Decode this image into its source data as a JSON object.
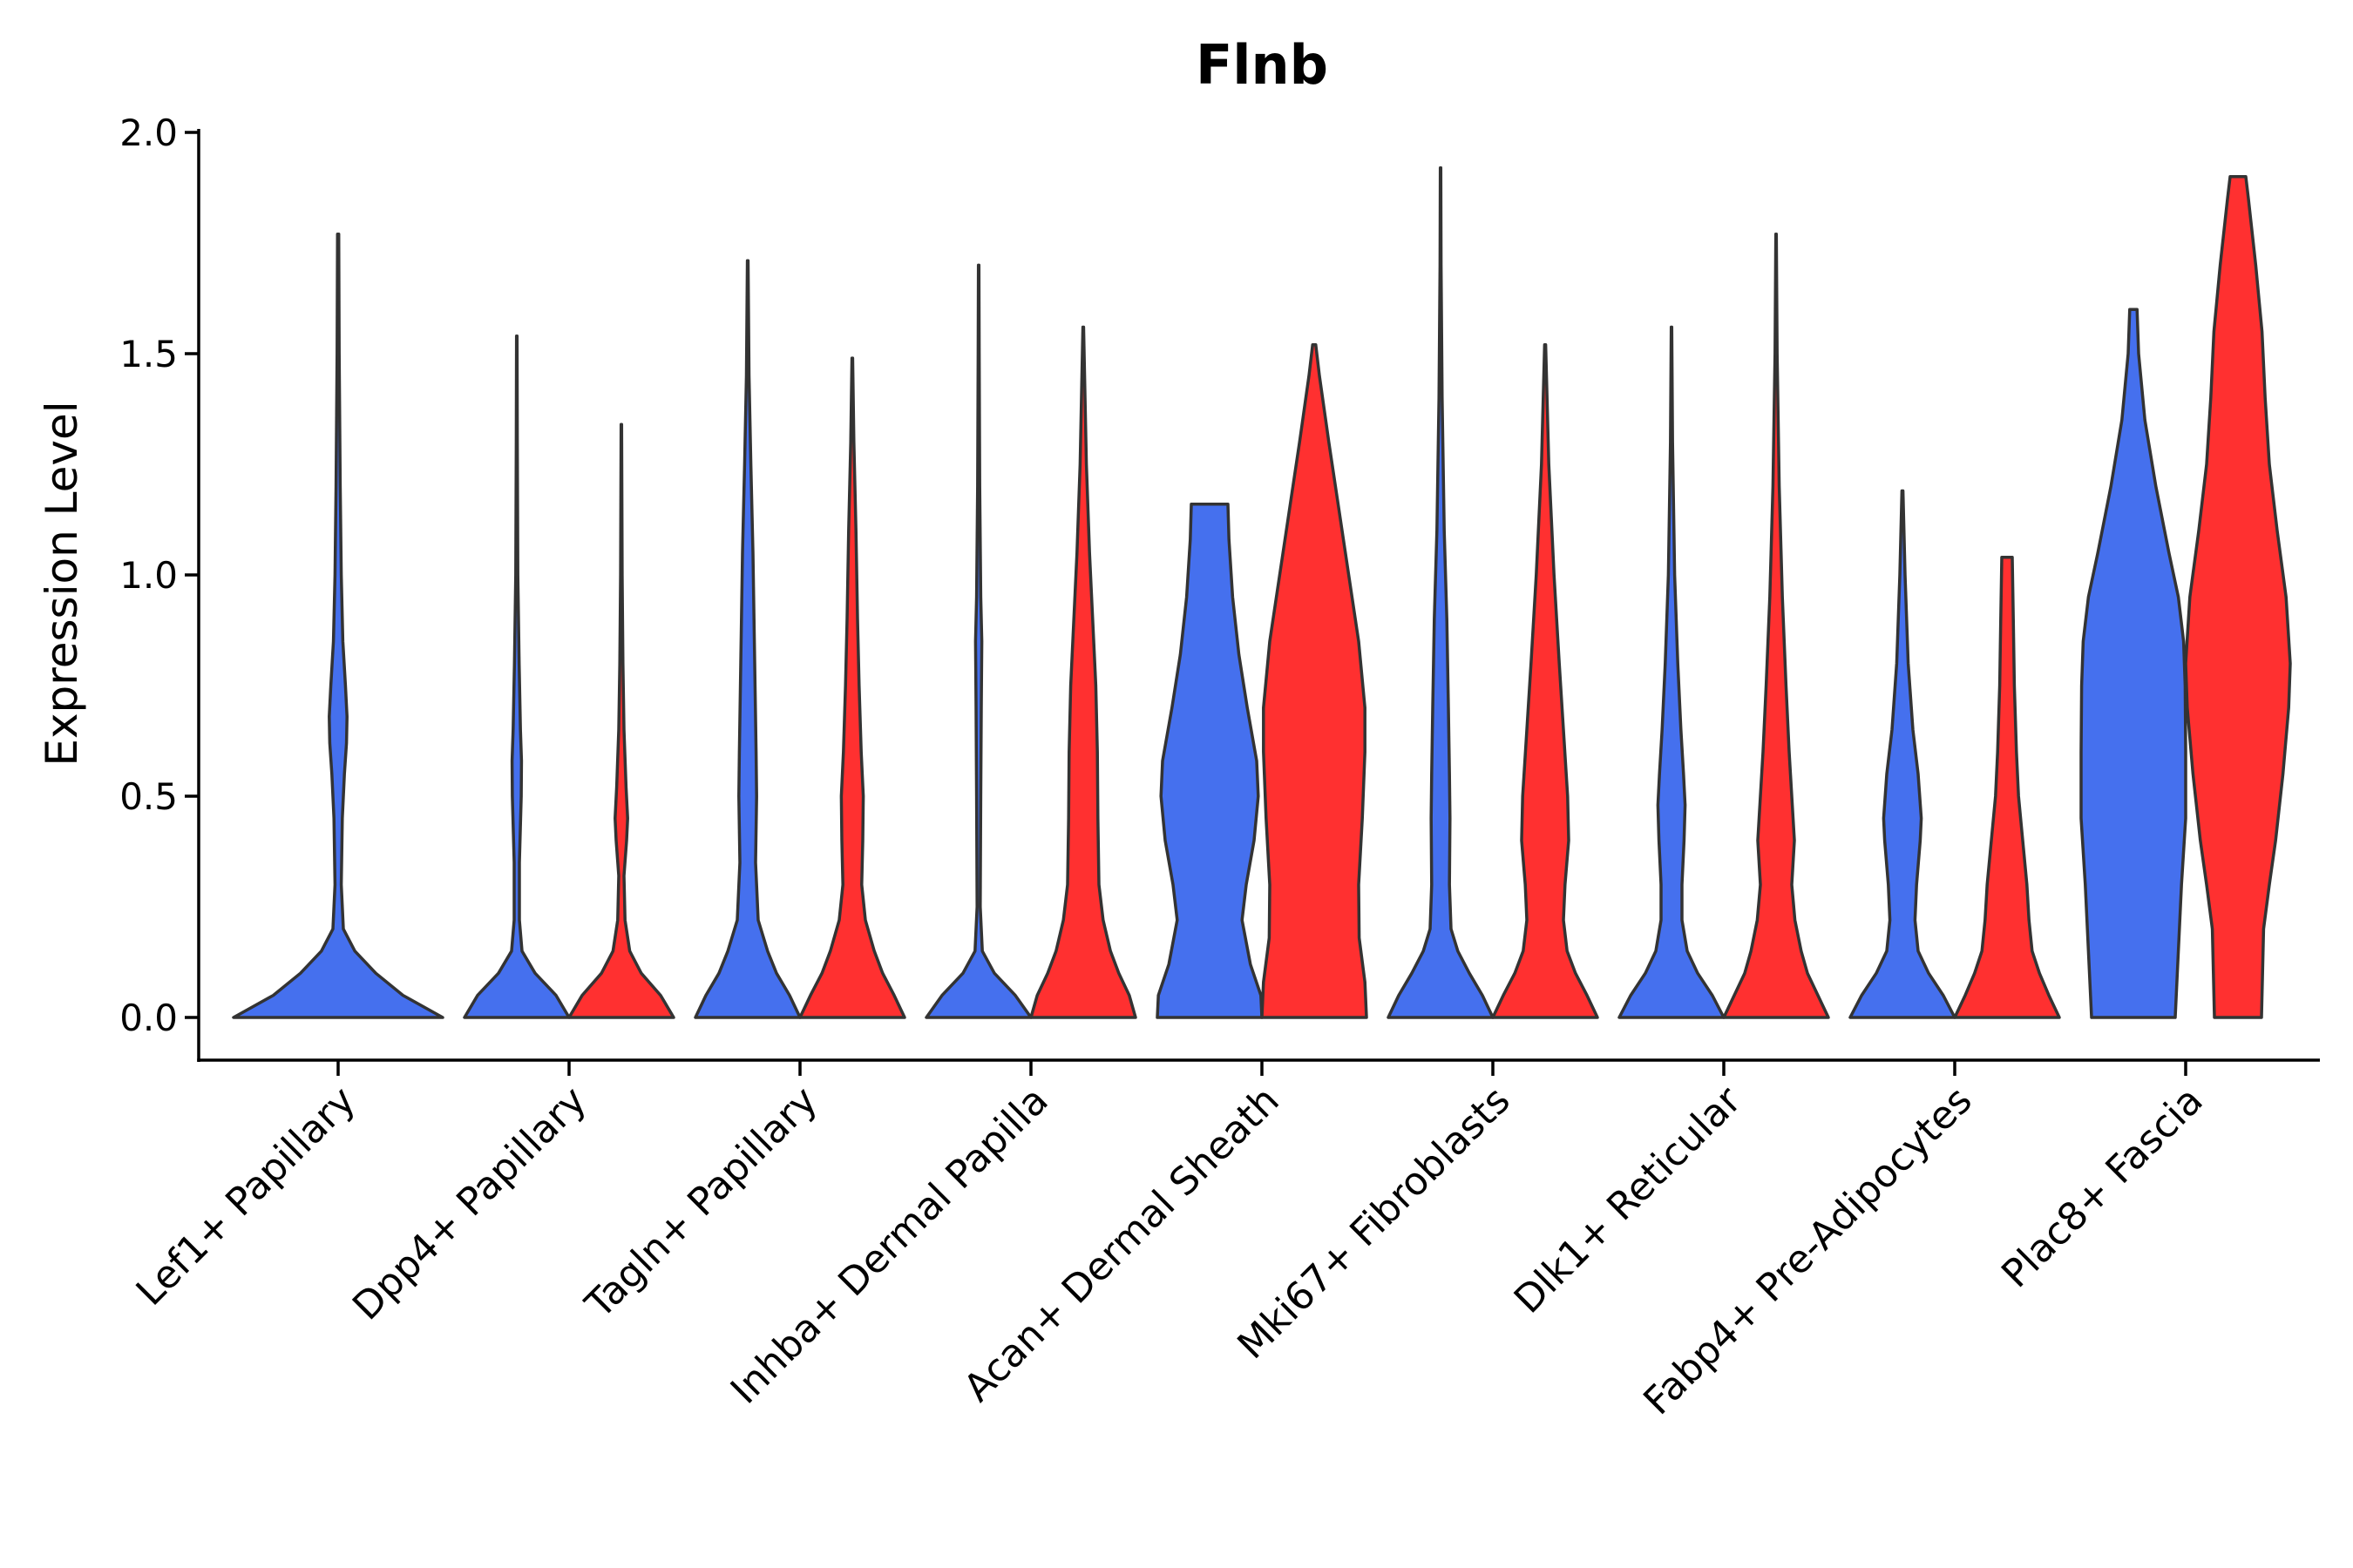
{
  "chart_data": {
    "type": "violin",
    "title": "Flnb",
    "xlabel": "",
    "ylabel": "Expression Level",
    "ylim": [
      -0.1,
      2.0
    ],
    "yticks": [
      0.0,
      0.5,
      1.0,
      1.5,
      2.0
    ],
    "ytick_labels": [
      "0.0",
      "0.5",
      "1.0",
      "1.5",
      "2.0"
    ],
    "series_colors": {
      "group1": "#4570EE",
      "group2": "#FF3030"
    },
    "categories": [
      "Lef1+ Papillary",
      "Dpp4+ Papillary",
      "Tagln+ Papillary",
      "Inhba+ Dermal Papilla",
      "Acan+ Dermal Sheath",
      "Mki67+ Fibroblasts",
      "Dlk1+ Reticular",
      "Fabp4+ Pre-Adipocytes",
      "Plac8+ Fascia"
    ],
    "violins": [
      {
        "category": "Lef1+ Papillary",
        "group": "group1",
        "max": 1.77,
        "profile": [
          [
            0,
            1
          ],
          [
            0.05,
            0.62
          ],
          [
            0.1,
            0.36
          ],
          [
            0.15,
            0.16
          ],
          [
            0.2,
            0.05
          ],
          [
            0.3,
            0.03
          ],
          [
            0.45,
            0.04
          ],
          [
            0.55,
            0.06
          ],
          [
            0.62,
            0.08
          ],
          [
            0.68,
            0.085
          ],
          [
            0.75,
            0.07
          ],
          [
            0.85,
            0.045
          ],
          [
            1.0,
            0.03
          ],
          [
            1.2,
            0.02
          ],
          [
            1.5,
            0.01
          ],
          [
            1.77,
            0.006
          ]
        ]
      },
      {
        "category": "Dpp4+ Papillary",
        "group": "group1",
        "max": 1.54,
        "profile": [
          [
            0,
            1
          ],
          [
            0.05,
            0.75
          ],
          [
            0.1,
            0.35
          ],
          [
            0.15,
            0.1
          ],
          [
            0.22,
            0.05
          ],
          [
            0.35,
            0.05
          ],
          [
            0.5,
            0.085
          ],
          [
            0.58,
            0.09
          ],
          [
            0.65,
            0.07
          ],
          [
            0.8,
            0.045
          ],
          [
            1.0,
            0.02
          ],
          [
            1.3,
            0.01
          ],
          [
            1.54,
            0.005
          ]
        ]
      },
      {
        "category": "Dpp4+ Papillary",
        "group": "group2",
        "max": 1.34,
        "profile": [
          [
            0,
            1
          ],
          [
            0.05,
            0.75
          ],
          [
            0.1,
            0.38
          ],
          [
            0.15,
            0.16
          ],
          [
            0.22,
            0.07
          ],
          [
            0.32,
            0.05
          ],
          [
            0.4,
            0.1
          ],
          [
            0.45,
            0.12
          ],
          [
            0.52,
            0.09
          ],
          [
            0.65,
            0.05
          ],
          [
            0.8,
            0.03
          ],
          [
            1.0,
            0.015
          ],
          [
            1.34,
            0.005
          ]
        ]
      },
      {
        "category": "Tagln+ Papillary",
        "group": "group1",
        "max": 1.71,
        "profile": [
          [
            0,
            1
          ],
          [
            0.05,
            0.8
          ],
          [
            0.1,
            0.55
          ],
          [
            0.15,
            0.38
          ],
          [
            0.22,
            0.2
          ],
          [
            0.35,
            0.15
          ],
          [
            0.5,
            0.17
          ],
          [
            0.6,
            0.16
          ],
          [
            0.75,
            0.14
          ],
          [
            0.9,
            0.12
          ],
          [
            1.05,
            0.1
          ],
          [
            1.25,
            0.06
          ],
          [
            1.45,
            0.025
          ],
          [
            1.71,
            0.006
          ]
        ]
      },
      {
        "category": "Tagln+ Papillary",
        "group": "group2",
        "max": 1.49,
        "profile": [
          [
            0,
            1
          ],
          [
            0.05,
            0.8
          ],
          [
            0.1,
            0.58
          ],
          [
            0.15,
            0.42
          ],
          [
            0.22,
            0.25
          ],
          [
            0.3,
            0.18
          ],
          [
            0.4,
            0.2
          ],
          [
            0.5,
            0.21
          ],
          [
            0.6,
            0.17
          ],
          [
            0.75,
            0.13
          ],
          [
            0.9,
            0.1
          ],
          [
            1.1,
            0.07
          ],
          [
            1.3,
            0.03
          ],
          [
            1.49,
            0.006
          ]
        ]
      },
      {
        "category": "Inhba+ Dermal Papilla",
        "group": "group1",
        "max": 1.7,
        "profile": [
          [
            0,
            1
          ],
          [
            0.05,
            0.7
          ],
          [
            0.1,
            0.3
          ],
          [
            0.15,
            0.07
          ],
          [
            0.25,
            0.03
          ],
          [
            0.5,
            0.04
          ],
          [
            0.7,
            0.05
          ],
          [
            0.85,
            0.06
          ],
          [
            0.95,
            0.04
          ],
          [
            1.2,
            0.02
          ],
          [
            1.5,
            0.01
          ],
          [
            1.7,
            0.005
          ]
        ]
      },
      {
        "category": "Inhba+ Dermal Papilla",
        "group": "group2",
        "max": 1.56,
        "profile": [
          [
            0,
            1
          ],
          [
            0.05,
            0.88
          ],
          [
            0.1,
            0.68
          ],
          [
            0.15,
            0.52
          ],
          [
            0.22,
            0.38
          ],
          [
            0.3,
            0.3
          ],
          [
            0.45,
            0.28
          ],
          [
            0.6,
            0.27
          ],
          [
            0.75,
            0.24
          ],
          [
            0.9,
            0.18
          ],
          [
            1.05,
            0.12
          ],
          [
            1.25,
            0.06
          ],
          [
            1.56,
            0.006
          ]
        ]
      },
      {
        "category": "Acan+ Dermal Sheath",
        "group": "group1",
        "max": 1.16,
        "profile": [
          [
            0,
            1
          ],
          [
            0.05,
            0.98
          ],
          [
            0.12,
            0.78
          ],
          [
            0.22,
            0.62
          ],
          [
            0.3,
            0.7
          ],
          [
            0.4,
            0.85
          ],
          [
            0.5,
            0.93
          ],
          [
            0.58,
            0.9
          ],
          [
            0.7,
            0.72
          ],
          [
            0.82,
            0.56
          ],
          [
            0.95,
            0.44
          ],
          [
            1.08,
            0.37
          ],
          [
            1.16,
            0.35
          ]
        ]
      },
      {
        "category": "Acan+ Dermal Sheath",
        "group": "group2",
        "max": 1.52,
        "profile": [
          [
            0,
            1
          ],
          [
            0.08,
            0.97
          ],
          [
            0.18,
            0.86
          ],
          [
            0.3,
            0.85
          ],
          [
            0.45,
            0.92
          ],
          [
            0.6,
            0.97
          ],
          [
            0.7,
            0.97
          ],
          [
            0.85,
            0.85
          ],
          [
            1.0,
            0.66
          ],
          [
            1.15,
            0.47
          ],
          [
            1.3,
            0.28
          ],
          [
            1.45,
            0.1
          ],
          [
            1.52,
            0.03
          ]
        ]
      },
      {
        "category": "Mki67+ Fibroblasts",
        "group": "group1",
        "max": 1.92,
        "profile": [
          [
            0,
            1
          ],
          [
            0.05,
            0.8
          ],
          [
            0.1,
            0.55
          ],
          [
            0.15,
            0.33
          ],
          [
            0.2,
            0.2
          ],
          [
            0.3,
            0.17
          ],
          [
            0.45,
            0.18
          ],
          [
            0.55,
            0.17
          ],
          [
            0.7,
            0.15
          ],
          [
            0.9,
            0.12
          ],
          [
            1.1,
            0.07
          ],
          [
            1.4,
            0.03
          ],
          [
            1.7,
            0.01
          ],
          [
            1.92,
            0.005
          ]
        ]
      },
      {
        "category": "Mki67+ Fibroblasts",
        "group": "group2",
        "max": 1.52,
        "profile": [
          [
            0,
            1
          ],
          [
            0.05,
            0.8
          ],
          [
            0.1,
            0.58
          ],
          [
            0.15,
            0.42
          ],
          [
            0.22,
            0.35
          ],
          [
            0.3,
            0.38
          ],
          [
            0.4,
            0.45
          ],
          [
            0.5,
            0.43
          ],
          [
            0.65,
            0.35
          ],
          [
            0.8,
            0.27
          ],
          [
            1.0,
            0.17
          ],
          [
            1.25,
            0.07
          ],
          [
            1.52,
            0.01
          ]
        ]
      },
      {
        "category": "Dlk1+ Reticular",
        "group": "group1",
        "max": 1.56,
        "profile": [
          [
            0,
            1
          ],
          [
            0.05,
            0.78
          ],
          [
            0.1,
            0.5
          ],
          [
            0.15,
            0.3
          ],
          [
            0.22,
            0.2
          ],
          [
            0.3,
            0.2
          ],
          [
            0.4,
            0.24
          ],
          [
            0.48,
            0.26
          ],
          [
            0.55,
            0.23
          ],
          [
            0.65,
            0.18
          ],
          [
            0.8,
            0.12
          ],
          [
            1.0,
            0.06
          ],
          [
            1.3,
            0.02
          ],
          [
            1.56,
            0.005
          ]
        ]
      },
      {
        "category": "Dlk1+ Reticular",
        "group": "group2",
        "max": 1.77,
        "profile": [
          [
            0,
            1
          ],
          [
            0.05,
            0.8
          ],
          [
            0.1,
            0.6
          ],
          [
            0.15,
            0.48
          ],
          [
            0.22,
            0.36
          ],
          [
            0.3,
            0.3
          ],
          [
            0.4,
            0.35
          ],
          [
            0.48,
            0.31
          ],
          [
            0.6,
            0.25
          ],
          [
            0.75,
            0.19
          ],
          [
            0.95,
            0.12
          ],
          [
            1.2,
            0.06
          ],
          [
            1.5,
            0.02
          ],
          [
            1.77,
            0.005
          ]
        ]
      },
      {
        "category": "Fabp4+ Pre-Adipocytes",
        "group": "group1",
        "max": 1.19,
        "profile": [
          [
            0,
            1
          ],
          [
            0.05,
            0.78
          ],
          [
            0.1,
            0.5
          ],
          [
            0.15,
            0.3
          ],
          [
            0.22,
            0.24
          ],
          [
            0.3,
            0.27
          ],
          [
            0.4,
            0.34
          ],
          [
            0.45,
            0.36
          ],
          [
            0.55,
            0.3
          ],
          [
            0.65,
            0.2
          ],
          [
            0.8,
            0.11
          ],
          [
            1.0,
            0.05
          ],
          [
            1.19,
            0.01
          ]
        ]
      },
      {
        "category": "Fabp4+ Pre-Adipocytes",
        "group": "group2",
        "max": 1.04,
        "profile": [
          [
            0,
            1
          ],
          [
            0.05,
            0.8
          ],
          [
            0.1,
            0.62
          ],
          [
            0.15,
            0.48
          ],
          [
            0.22,
            0.42
          ],
          [
            0.3,
            0.38
          ],
          [
            0.4,
            0.3
          ],
          [
            0.5,
            0.22
          ],
          [
            0.6,
            0.18
          ],
          [
            0.75,
            0.14
          ],
          [
            0.9,
            0.12
          ],
          [
            1.04,
            0.1
          ]
        ]
      },
      {
        "category": "Plac8+ Fascia",
        "group": "group1",
        "max": 1.6,
        "profile": [
          [
            0,
            0.8
          ],
          [
            0.1,
            0.84
          ],
          [
            0.2,
            0.88
          ],
          [
            0.3,
            0.92
          ],
          [
            0.45,
            1.0
          ],
          [
            0.6,
            1.0
          ],
          [
            0.75,
            0.99
          ],
          [
            0.85,
            0.96
          ],
          [
            0.95,
            0.86
          ],
          [
            1.05,
            0.68
          ],
          [
            1.2,
            0.43
          ],
          [
            1.35,
            0.22
          ],
          [
            1.5,
            0.1
          ],
          [
            1.6,
            0.07
          ]
        ]
      },
      {
        "category": "Plac8+ Fascia",
        "group": "group2",
        "max": 1.9,
        "profile": [
          [
            0,
            0.45
          ],
          [
            0.1,
            0.47
          ],
          [
            0.2,
            0.49
          ],
          [
            0.3,
            0.6
          ],
          [
            0.4,
            0.72
          ],
          [
            0.55,
            0.86
          ],
          [
            0.7,
            0.97
          ],
          [
            0.8,
            1.0
          ],
          [
            0.95,
            0.92
          ],
          [
            1.1,
            0.75
          ],
          [
            1.25,
            0.6
          ],
          [
            1.4,
            0.52
          ],
          [
            1.55,
            0.46
          ],
          [
            1.7,
            0.34
          ],
          [
            1.85,
            0.2
          ],
          [
            1.9,
            0.15
          ]
        ]
      }
    ]
  }
}
